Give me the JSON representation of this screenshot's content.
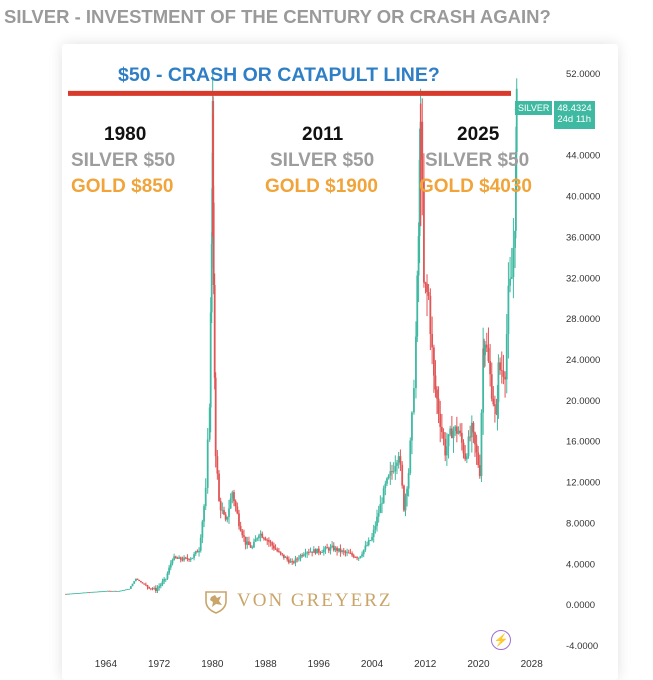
{
  "page_title": "SILVER - INVESTMENT OF THE CENTURY OR CRASH AGAIN?",
  "crash_line_label": "$50 - CRASH OR CATAPULT LINE?",
  "colors": {
    "accent_blue": "#2f7fc6",
    "crash_line": "#d83a2c",
    "up": "#3fb9a2",
    "down": "#e05555",
    "gold_text": "#f0a43a",
    "grey_text": "#9d9d9d"
  },
  "annotations": [
    {
      "year": "1980",
      "silver": "SILVER $50",
      "gold": "GOLD $850"
    },
    {
      "year": "2011",
      "silver": "SILVER $50",
      "gold": "GOLD $1900"
    },
    {
      "year": "2025",
      "silver": "SILVER $50",
      "gold": "GOLD $4030"
    }
  ],
  "price_tag": {
    "symbol": "SILVER",
    "value": "48.4324",
    "countdown": "24d 11h"
  },
  "logo_text": "VON GREYERZ",
  "chart_data": {
    "type": "line",
    "title": "SILVER - INVESTMENT OF THE CENTURY OR CRASH AGAIN?",
    "xlabel": "",
    "ylabel": "",
    "xlim": [
      1958,
      2030
    ],
    "ylim": [
      -4,
      52
    ],
    "x_ticks": [
      1964,
      1972,
      1980,
      1988,
      1996,
      2004,
      2012,
      2020,
      2028
    ],
    "x_tick_labels": [
      "1964",
      "1972",
      "1980",
      "1988",
      "1996",
      "2004",
      "2012",
      "2020",
      "2028"
    ],
    "y_ticks": [
      -4,
      0,
      4,
      8,
      12,
      16,
      20,
      24,
      28,
      32,
      36,
      40,
      44,
      48,
      52
    ],
    "y_tick_labels": [
      "-4.0000",
      "0.0000",
      "4.0000",
      "8.0000",
      "12.0000",
      "16.0000",
      "20.0000",
      "24.0000",
      "28.0000",
      "32.0000",
      "36.0000",
      "40.0000",
      "44.0000",
      "",
      "52.0000"
    ],
    "reference_line": {
      "value": 50,
      "label": "$50 - CRASH OR CATAPULT LINE?"
    },
    "last_value": 48.4324,
    "series": [
      {
        "name": "SILVER",
        "x": [
          1958,
          1964,
          1966,
          1967.5,
          1968.5,
          1970,
          1971.5,
          1973,
          1974,
          1975,
          1976,
          1977,
          1978,
          1979,
          1979.6,
          1979.9,
          1980.05,
          1980.2,
          1980.5,
          1981,
          1982,
          1983,
          1984,
          1985,
          1986,
          1987,
          1988,
          1990,
          1992,
          1994,
          1996,
          1998,
          2000,
          2002,
          2004,
          2006,
          2007,
          2008,
          2008.8,
          2009.5,
          2010,
          2010.6,
          2011,
          2011.3,
          2011.8,
          2012.5,
          2013.3,
          2014,
          2015,
          2016,
          2017,
          2018,
          2019,
          2020.2,
          2020.7,
          2021,
          2022,
          2022.7,
          2023,
          2024,
          2024.5,
          2025,
          2025.5,
          2025.75
        ],
        "y": [
          1,
          1.29,
          1.29,
          1.5,
          2.5,
          1.8,
          1.4,
          2.5,
          4.5,
          4.4,
          4.4,
          4.6,
          5.4,
          11,
          20,
          36,
          48,
          30,
          15,
          10,
          8,
          11,
          8,
          6,
          5.5,
          7,
          6.5,
          5,
          4,
          5.2,
          5.2,
          5.5,
          5,
          4.6,
          6.5,
          11.5,
          13,
          15,
          9.5,
          13,
          18,
          26,
          36,
          49,
          31,
          30,
          22,
          19,
          15,
          17,
          17,
          14.5,
          17,
          13,
          25,
          26,
          21,
          18,
          23,
          23,
          30,
          32,
          38,
          48.4324
        ]
      }
    ]
  }
}
